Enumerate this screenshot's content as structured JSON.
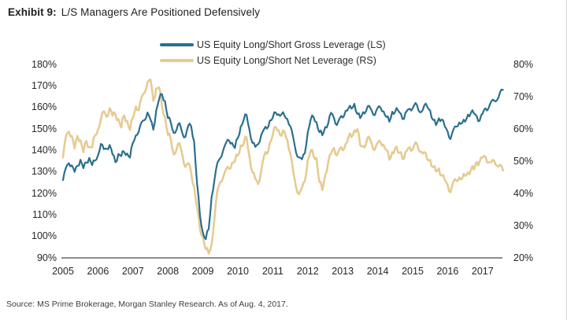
{
  "title": {
    "prefix": "Exhibit 9:",
    "text": "L/S Managers Are Positioned Defensively"
  },
  "source": "Source: MS Prime Brokerage, Morgan Stanley Research. As of Aug. 4, 2017.",
  "colors": {
    "gross_line": "#2b6f8e",
    "net_line": "#e6cb92",
    "axis_line": "#4a4a4a",
    "tick_text": "#262626"
  },
  "legend": {
    "items": [
      {
        "label": "US Equity Long/Short Gross Leverage (LS)",
        "color": "#2b6f8e"
      },
      {
        "label": "US Equity Long/Short Net Leverage (RS)",
        "color": "#e6cb92"
      }
    ]
  },
  "chart_data": {
    "type": "line",
    "title": "",
    "x_start": "2005-01",
    "x_end": "2017-08",
    "x_tick_labels": [
      "2005",
      "2006",
      "2007",
      "2008",
      "2009",
      "2010",
      "2011",
      "2012",
      "2013",
      "2014",
      "2015",
      "2016",
      "2017"
    ],
    "left_axis": {
      "label": "Gross Leverage (LS)",
      "min": 90,
      "max": 180,
      "tick_step": 10,
      "tick_labels": [
        "180%",
        "170%",
        "160%",
        "150%",
        "140%",
        "130%",
        "120%",
        "110%",
        "100%",
        "90%"
      ]
    },
    "right_axis": {
      "label": "Net Leverage (RS)",
      "min": 20,
      "max": 80,
      "tick_step": 10,
      "tick_labels": [
        "80%",
        "70%",
        "60%",
        "50%",
        "40%",
        "30%",
        "20%"
      ]
    },
    "grid": false,
    "legend_position": "top-center",
    "series": [
      {
        "name": "US Equity Long/Short Gross Leverage (LS)",
        "axis": "left",
        "color": "#2b6f8e",
        "frequency": "monthly",
        "values": [
          126,
          131,
          135,
          132,
          130,
          133,
          135,
          132,
          134,
          136,
          134,
          134,
          138,
          143,
          140,
          141,
          142,
          138,
          135,
          137,
          138,
          139,
          138,
          137,
          143,
          147,
          149,
          152,
          155,
          157,
          154,
          150,
          158,
          164,
          166,
          162,
          156,
          152,
          148,
          150,
          152,
          148,
          146,
          151,
          152,
          143,
          125,
          110,
          101,
          99,
          103,
          118,
          127,
          133,
          137,
          140,
          143,
          145,
          143,
          141,
          146,
          150,
          155,
          156,
          149,
          144,
          141,
          143,
          147,
          149,
          151,
          153,
          155,
          158,
          156,
          157,
          156,
          154,
          152,
          145,
          139,
          137,
          135,
          139,
          148,
          154,
          156,
          152,
          149,
          147,
          150,
          153,
          157,
          155,
          152,
          154,
          156,
          158,
          159,
          160,
          161,
          157,
          155,
          157,
          159,
          160,
          158,
          157,
          159,
          160,
          158,
          155,
          154,
          157,
          158,
          159,
          156,
          155,
          158,
          159,
          160,
          161,
          159,
          158,
          160,
          161,
          158,
          154,
          152,
          154,
          155,
          151,
          148,
          146,
          149,
          151,
          153,
          152,
          154,
          156,
          157,
          158,
          155,
          154,
          157,
          159,
          160,
          162,
          163,
          164,
          166,
          168
        ]
      },
      {
        "name": "US Equity Long/Short Net Leverage (RS)",
        "axis": "right",
        "color": "#e6cb92",
        "frequency": "monthly",
        "values": [
          51,
          57,
          60,
          57,
          54,
          58,
          56,
          53,
          56,
          54,
          55,
          57,
          60,
          63,
          65,
          64,
          66,
          64,
          65,
          62,
          61,
          64,
          62,
          60,
          63,
          67,
          66,
          69,
          72,
          74,
          75,
          69,
          72,
          73,
          67,
          63,
          59,
          56,
          52,
          54,
          55,
          52,
          48,
          49,
          47,
          41,
          36,
          29,
          26,
          23,
          21,
          24,
          33,
          40,
          44,
          45,
          47,
          48,
          49,
          50,
          52,
          54,
          56,
          57,
          51,
          47,
          44,
          43,
          47,
          51,
          53,
          55,
          58,
          61,
          59,
          58,
          59,
          56,
          53,
          46,
          42,
          40,
          41,
          44,
          50,
          53,
          52,
          50,
          44,
          41,
          45,
          50,
          52,
          54,
          52,
          53,
          54,
          55,
          57,
          58,
          59,
          60,
          55,
          54,
          56,
          57,
          55,
          54,
          55,
          56,
          55,
          53,
          51,
          52,
          54,
          53,
          52,
          51,
          53,
          54,
          54,
          55,
          54,
          53,
          52,
          51,
          50,
          48,
          47,
          47,
          46,
          44,
          42,
          41,
          43,
          44,
          45,
          44,
          46,
          46,
          47,
          48,
          49,
          50,
          51,
          51,
          50,
          49,
          50,
          49,
          48,
          47
        ]
      }
    ]
  }
}
